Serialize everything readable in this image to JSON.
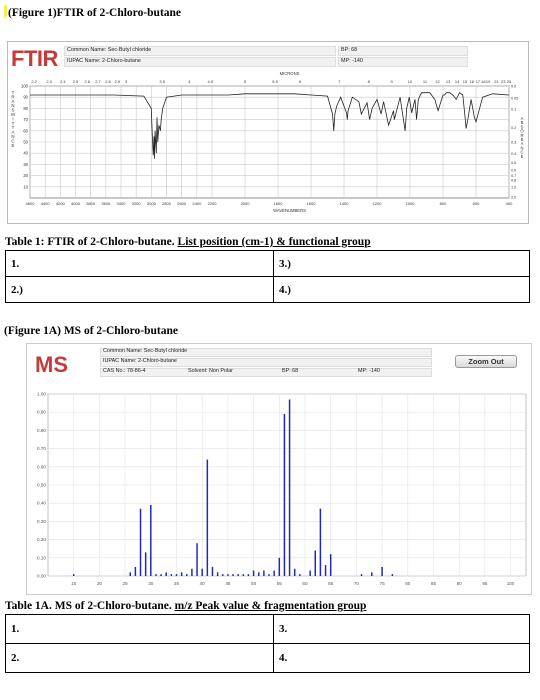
{
  "figure1": {
    "caption": "(Figure 1)FTIR of 2-Chloro-butane",
    "logo": "FTIR",
    "common_name": "Common Name:  Sec-Butyl chloride",
    "iupac_name": "IUPAC Name:  2-Chloro-butane",
    "bp": "BP: 68",
    "mp": "MP: -140",
    "top_axis_label": "MICRONS",
    "bottom_axis_label": "WAVENUMBERS",
    "left_axis_label": "TRANSMITTANCE",
    "right_axis_label": "ABSORBANCE",
    "micron_ticks": [
      "2.2",
      "2.3",
      "2.4",
      "2.5",
      "2.6",
      "2.7",
      "2.8",
      "2.9",
      "3",
      "3.5",
      "4",
      "4.5",
      "5",
      "5.5",
      "6",
      "7",
      "8",
      "9",
      "10",
      "11",
      "12",
      "13",
      "14",
      "15",
      "16",
      "17",
      "18",
      "19",
      "21",
      "23",
      "25"
    ],
    "wavenumber_ticks": [
      "4600",
      "4400",
      "4200",
      "4000",
      "3800",
      "3600",
      "3400",
      "3200",
      "3000",
      "2800",
      "2600",
      "2400",
      "2200",
      "2000",
      "1800",
      "1600",
      "1400",
      "1200",
      "1000",
      "800",
      "600",
      "400"
    ],
    "transmittance_ticks": [
      "100",
      "90",
      "80",
      "70",
      "60",
      "50",
      "40",
      "30",
      "20",
      "10"
    ],
    "absorbance_ticks": [
      "0.0",
      "0.05",
      "0.1",
      "0.2",
      "0.3",
      "0.4",
      "0.5",
      "0.6",
      "0.7",
      "0.8",
      "1.0",
      "2.0"
    ]
  },
  "table1": {
    "caption_plain": "Table 1: FTIR of 2-Chloro-butane. ",
    "caption_underlined": "List position (cm-1) & functional group",
    "cells": [
      "1.",
      "3.)",
      "2.)",
      "4.)"
    ]
  },
  "figure1a": {
    "caption": "(Figure 1A) MS of 2-Chloro-butane",
    "logo": "MS",
    "common_name": "Common Name:  Sec-Butyl chloride",
    "iupac_name": "IUPAC Name:  2-Chloro-butane",
    "cas": "CAS No.:  78-86-4",
    "solvent": "Solvent:  Non Polar",
    "bp": "BP: 68",
    "mp": "MP: -140",
    "zoom_out": "Zoom Out",
    "y_ticks": [
      "1.00",
      "0.90",
      "0.80",
      "0.70",
      "0.60",
      "0.50",
      "0.40",
      "0.30",
      "0.20",
      "0.10",
      "0.00"
    ],
    "x_ticks": [
      "15",
      "20",
      "25",
      "30",
      "35",
      "40",
      "45",
      "50",
      "55",
      "60",
      "65",
      "70",
      "75",
      "80",
      "85",
      "90",
      "95",
      "100"
    ]
  },
  "table1a": {
    "caption_plain": "Table 1A. MS of 2-Chloro-butane. ",
    "caption_underlined": "m/z Peak value & fragmentation group",
    "cells": [
      "1.",
      "3.",
      "2.",
      "4."
    ]
  },
  "chart_data": [
    {
      "type": "line",
      "title": "",
      "xlabel": "WAVENUMBERS",
      "ylabel": "TRANSMITTANCE",
      "xlim": [
        4600,
        400
      ],
      "ylim": [
        0,
        100
      ],
      "x_reversed": true,
      "grid": true,
      "series": [
        {
          "x": [
            4600,
            4000,
            3500,
            3100,
            3000,
            2990,
            2975,
            2965,
            2960,
            2950,
            2935,
            2925,
            2915,
            2900,
            2880,
            2870,
            2850,
            2800,
            2600,
            2300,
            2100,
            2000,
            1900,
            1800,
            1700,
            1600,
            1500,
            1470,
            1462,
            1455,
            1445,
            1420,
            1385,
            1380,
            1375,
            1350,
            1310,
            1295,
            1260,
            1245,
            1230,
            1200,
            1175,
            1160,
            1130,
            1100,
            1095,
            1060,
            1030,
            1020,
            1005,
            990,
            970,
            960,
            950,
            930,
            910,
            880,
            850,
            830,
            800,
            790,
            780,
            760,
            740,
            720,
            700,
            680,
            665,
            660,
            650,
            630,
            610,
            600,
            560,
            500,
            400
          ],
          "y": [
            92,
            92,
            92,
            91,
            80,
            60,
            38,
            55,
            35,
            60,
            40,
            72,
            50,
            65,
            60,
            70,
            80,
            90,
            92,
            92,
            92,
            93,
            93,
            93,
            93,
            92,
            91,
            75,
            60,
            75,
            82,
            90,
            76,
            70,
            78,
            90,
            86,
            75,
            85,
            70,
            80,
            88,
            75,
            86,
            65,
            78,
            70,
            90,
            60,
            80,
            90,
            76,
            88,
            70,
            88,
            94,
            94,
            94,
            88,
            78,
            92,
            92,
            94,
            94,
            92,
            88,
            94,
            92,
            70,
            62,
            70,
            88,
            72,
            68,
            90,
            93,
            92
          ]
        }
      ]
    },
    {
      "type": "bar",
      "title": "",
      "xlabel": "m/z",
      "ylabel": "relative intensity",
      "xlim": [
        10,
        103
      ],
      "ylim": [
        0,
        1
      ],
      "grid": true,
      "x": [
        15,
        26,
        27,
        28,
        29,
        30,
        31,
        32,
        33,
        34,
        35,
        36,
        37,
        38,
        39,
        40,
        41,
        42,
        43,
        44,
        45,
        46,
        47,
        48,
        49,
        50,
        51,
        52,
        53,
        54,
        55,
        56,
        57,
        58,
        59,
        61,
        62,
        63,
        64,
        65,
        71,
        73,
        75,
        77
      ],
      "values": [
        0.01,
        0.02,
        0.05,
        0.37,
        0.13,
        0.39,
        0.01,
        0.01,
        0.02,
        0.01,
        0.01,
        0.02,
        0.01,
        0.04,
        0.18,
        0.04,
        0.64,
        0.05,
        0.02,
        0.01,
        0.01,
        0.01,
        0.01,
        0.01,
        0.01,
        0.03,
        0.02,
        0.03,
        0.01,
        0.03,
        0.1,
        0.89,
        0.97,
        0.04,
        0.01,
        0.03,
        0.14,
        0.37,
        0.06,
        0.12,
        0.01,
        0.02,
        0.05,
        0.01
      ]
    }
  ]
}
